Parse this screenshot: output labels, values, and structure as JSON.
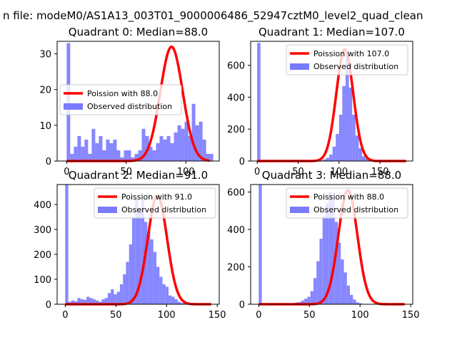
{
  "figure_title": "n file: modeM0/AS1A13_003T01_9000006486_52947cztM0_level2_quad_clean",
  "colors": {
    "hist": "#7a7aff",
    "curve": "#ff0000"
  },
  "chart_data": [
    {
      "type": "bar",
      "title": "Quadrant 0: Median=88.0",
      "median": 88.0,
      "legend_position": "center-left",
      "legend": {
        "poisson": "Poission with 88.0",
        "observed": "Observed distribution"
      },
      "xlim": [
        -8,
        128
      ],
      "ylim": [
        0,
        33.5
      ],
      "xticks": [
        0,
        50,
        100
      ],
      "yticks": [
        0,
        10,
        20,
        30
      ],
      "bin_start": 0,
      "bin_width": 3,
      "counts": [
        33,
        2,
        4,
        7,
        4,
        6,
        2,
        9,
        5,
        7,
        3,
        6,
        5,
        6,
        3,
        1,
        3,
        3,
        1,
        2,
        3,
        9,
        7,
        4,
        3,
        5,
        7,
        6,
        7,
        5,
        8,
        10,
        9,
        11,
        7,
        16,
        10,
        11,
        6,
        2,
        2,
        0,
        0
      ],
      "poisson_peak": 32
    },
    {
      "type": "bar",
      "title": "Quadrant 1: Median=107.0",
      "median": 107.0,
      "legend_position": "top-right",
      "legend": {
        "poisson": "Poission with 107.0",
        "observed": "Observed distribution"
      },
      "xlim": [
        -8,
        190
      ],
      "ylim": [
        0,
        750
      ],
      "xticks": [
        0,
        50,
        100,
        150
      ],
      "yticks": [
        0,
        200,
        400,
        600
      ],
      "bin_start": 0,
      "bin_width": 4,
      "counts": [
        740,
        0,
        0,
        0,
        0,
        0,
        0,
        0,
        0,
        0,
        0,
        0,
        0,
        0,
        0,
        0,
        0,
        0,
        3,
        5,
        10,
        20,
        40,
        90,
        170,
        290,
        470,
        690,
        460,
        290,
        160,
        80,
        30,
        15,
        5,
        2,
        1,
        0,
        0,
        0,
        0,
        0
      ],
      "poisson_peak": 700
    },
    {
      "type": "bar",
      "title": "Quadrant 2: Median=91.0",
      "median": 91.0,
      "legend_position": "top-right",
      "legend": {
        "poisson": "Poission with 91.0",
        "observed": "Observed distribution"
      },
      "xlim": [
        -8,
        152
      ],
      "ylim": [
        0,
        480
      ],
      "xticks": [
        0,
        50,
        100,
        150
      ],
      "yticks": [
        0,
        100,
        200,
        300,
        400
      ],
      "bin_start": 0,
      "bin_width": 3,
      "counts": [
        480,
        10,
        15,
        12,
        25,
        20,
        18,
        30,
        25,
        20,
        15,
        10,
        20,
        25,
        45,
        60,
        40,
        50,
        80,
        120,
        170,
        240,
        350,
        420,
        380,
        420,
        330,
        290,
        260,
        210,
        150,
        110,
        80,
        70,
        35,
        30,
        20,
        10,
        5,
        3,
        2,
        0,
        0,
        0,
        0,
        0,
        0,
        0
      ],
      "poisson_peak": 435
    },
    {
      "type": "bar",
      "title": "Quadrant 3: Median=88.0",
      "median": 88.0,
      "legend_position": "top-right",
      "legend": {
        "poisson": "Poission with 88.0",
        "observed": "Observed distribution"
      },
      "xlim": [
        -8,
        152
      ],
      "ylim": [
        0,
        640
      ],
      "xticks": [
        0,
        50,
        100,
        150
      ],
      "yticks": [
        0,
        200,
        400,
        600
      ],
      "bin_start": 0,
      "bin_width": 3,
      "counts": [
        640,
        0,
        0,
        0,
        0,
        0,
        0,
        0,
        0,
        0,
        2,
        5,
        10,
        12,
        20,
        30,
        40,
        70,
        140,
        230,
        350,
        470,
        540,
        600,
        560,
        440,
        330,
        240,
        170,
        100,
        50,
        25,
        10,
        5,
        2,
        1,
        0,
        0,
        0,
        0,
        0,
        0,
        0,
        0,
        0,
        0,
        0,
        0
      ],
      "poisson_peak": 610
    }
  ]
}
